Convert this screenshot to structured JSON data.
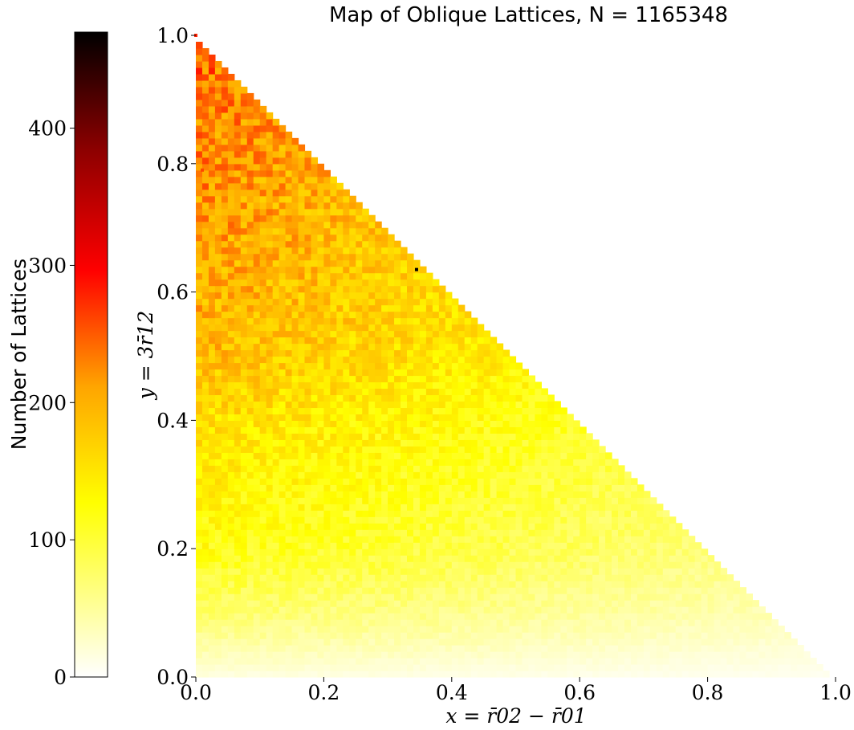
{
  "chart_data": {
    "type": "heatmap",
    "title": "Map of Oblique Lattices, N = 1165348",
    "xlabel": "x = r̄02 − r̄01",
    "ylabel": "y = 3r̄12",
    "xlim": [
      0.0,
      1.0
    ],
    "ylim": [
      0.0,
      1.0
    ],
    "x_ticks": [
      "0.0",
      "0.2",
      "0.4",
      "0.6",
      "0.8",
      "1.0"
    ],
    "y_ticks": [
      "0.0",
      "0.2",
      "0.4",
      "0.6",
      "0.8",
      "1.0"
    ],
    "region": "lower-left triangle, x + y <= 1",
    "grid": false,
    "colormap": "hot_r",
    "colorbar": {
      "label": "Number of Lattices",
      "range": [
        0,
        470
      ],
      "ticks": [
        "0",
        "100",
        "200",
        "300",
        "400"
      ],
      "placement": "left"
    },
    "density_profile": [
      {
        "y": 0.0,
        "count_at_x0": 15
      },
      {
        "y": 0.1,
        "count_at_x0": 75
      },
      {
        "y": 0.2,
        "count_at_x0": 120
      },
      {
        "y": 0.3,
        "count_at_x0": 140
      },
      {
        "y": 0.4,
        "count_at_x0": 160
      },
      {
        "y": 0.5,
        "count_at_x0": 190
      },
      {
        "y": 0.6,
        "count_at_x0": 205
      },
      {
        "y": 0.7,
        "count_at_x0": 215
      },
      {
        "y": 0.8,
        "count_at_x0": 225
      },
      {
        "y": 0.9,
        "count_at_x0": 235
      },
      {
        "y": 1.0,
        "count_at_x0": 250
      }
    ],
    "outliers": [
      {
        "x": 0.345,
        "y": 0.635,
        "count": 470
      },
      {
        "x": 0.01,
        "y": 0.79,
        "count": 260
      },
      {
        "x": 0.0,
        "y": 1.0,
        "count": 280
      }
    ],
    "colors": {
      "cmap_stops": [
        "#ffffff",
        "#ffff00",
        "#ffa500",
        "#ff0000",
        "#8b0000",
        "#000000"
      ]
    }
  }
}
